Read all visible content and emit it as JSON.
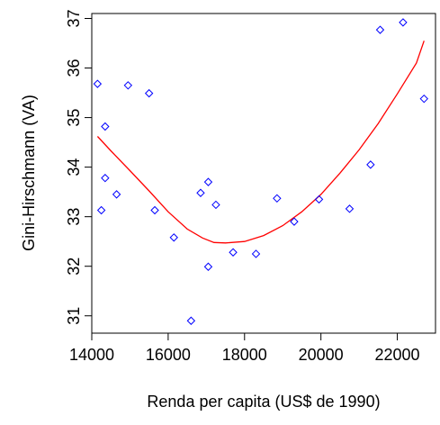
{
  "chart_data": {
    "type": "scatter",
    "xlabel": "Renda per capita (US$ de 1990)",
    "ylabel": "Gini-Hirschmann (VA)",
    "xlim": [
      14000,
      23000
    ],
    "ylim": [
      30.65,
      37.1
    ],
    "x_ticks": [
      14000,
      16000,
      18000,
      20000,
      22000
    ],
    "y_ticks": [
      31,
      32,
      33,
      34,
      35,
      36,
      37
    ],
    "grid": false,
    "legend": "none",
    "colors": {
      "points": "#0000ff",
      "smooth": "#ff0000",
      "axis": "#000000"
    },
    "series": [
      {
        "type": "scatter",
        "marker": "diamond-open",
        "points": [
          [
            14150,
            35.68
          ],
          [
            14250,
            33.13
          ],
          [
            14350,
            34.82
          ],
          [
            14350,
            33.78
          ],
          [
            14650,
            33.45
          ],
          [
            14950,
            35.65
          ],
          [
            15500,
            35.49
          ],
          [
            15650,
            33.13
          ],
          [
            16150,
            32.58
          ],
          [
            16600,
            30.9
          ],
          [
            16850,
            33.48
          ],
          [
            17050,
            33.7
          ],
          [
            17050,
            31.99
          ],
          [
            17250,
            33.24
          ],
          [
            17700,
            32.28
          ],
          [
            18300,
            32.25
          ],
          [
            18850,
            33.37
          ],
          [
            19300,
            32.9
          ],
          [
            19950,
            33.35
          ],
          [
            20750,
            33.16
          ],
          [
            21300,
            34.05
          ],
          [
            21550,
            36.77
          ],
          [
            22150,
            36.92
          ],
          [
            22700,
            35.38
          ]
        ]
      },
      {
        "type": "line",
        "points": [
          [
            14150,
            34.62
          ],
          [
            14500,
            34.33
          ],
          [
            15000,
            33.93
          ],
          [
            15500,
            33.52
          ],
          [
            16000,
            33.1
          ],
          [
            16500,
            32.75
          ],
          [
            16900,
            32.57
          ],
          [
            17200,
            32.48
          ],
          [
            17500,
            32.47
          ],
          [
            18000,
            32.5
          ],
          [
            18500,
            32.62
          ],
          [
            19000,
            32.82
          ],
          [
            19500,
            33.1
          ],
          [
            20000,
            33.45
          ],
          [
            20500,
            33.88
          ],
          [
            21000,
            34.35
          ],
          [
            21500,
            34.88
          ],
          [
            22000,
            35.48
          ],
          [
            22500,
            36.1
          ],
          [
            22700,
            36.55
          ]
        ]
      }
    ]
  }
}
